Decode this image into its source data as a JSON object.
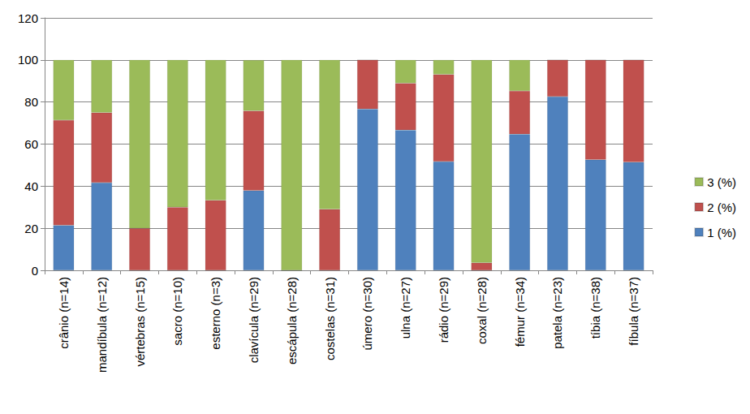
{
  "chart_data": {
    "type": "bar",
    "stacked": true,
    "grid": true,
    "legend": "right",
    "categories": [
      "crânio (n=14)",
      "mandíbula (n=12)",
      "vértebras (n=15)",
      "sacro (n=10)",
      "esterno (n=3)",
      "clavícula (n=29)",
      "escápula (n=28)",
      "costelas (n=31)",
      "úmero (n=30)",
      "ulna (n=27)",
      "rádio (n=29)",
      "coxal (n=28)",
      "fémur (n=34)",
      "patela (n=23)",
      "tíbia (n=38)",
      "fíbula (n=37)"
    ],
    "series": [
      {
        "name": "1 (%)",
        "color": "#4f81bd",
        "values": [
          21.4,
          41.7,
          0,
          0,
          0,
          37.9,
          0,
          0,
          76.7,
          66.7,
          51.7,
          0,
          64.7,
          82.6,
          52.6,
          51.4
        ]
      },
      {
        "name": "2 (%)",
        "color": "#c0504d",
        "values": [
          50.0,
          33.3,
          20.0,
          30.0,
          33.3,
          37.9,
          0,
          29.0,
          23.3,
          22.2,
          41.4,
          3.6,
          20.6,
          17.4,
          47.4,
          48.6
        ]
      },
      {
        "name": "3 (%)",
        "color": "#9bbb59",
        "values": [
          28.6,
          25.0,
          80.0,
          70.0,
          66.7,
          24.1,
          100,
          71.0,
          0,
          11.1,
          6.9,
          96.4,
          14.7,
          0,
          0,
          0
        ]
      }
    ],
    "ylim": [
      0,
      120
    ],
    "yticks": [
      0,
      20,
      40,
      60,
      80,
      100,
      120
    ]
  }
}
